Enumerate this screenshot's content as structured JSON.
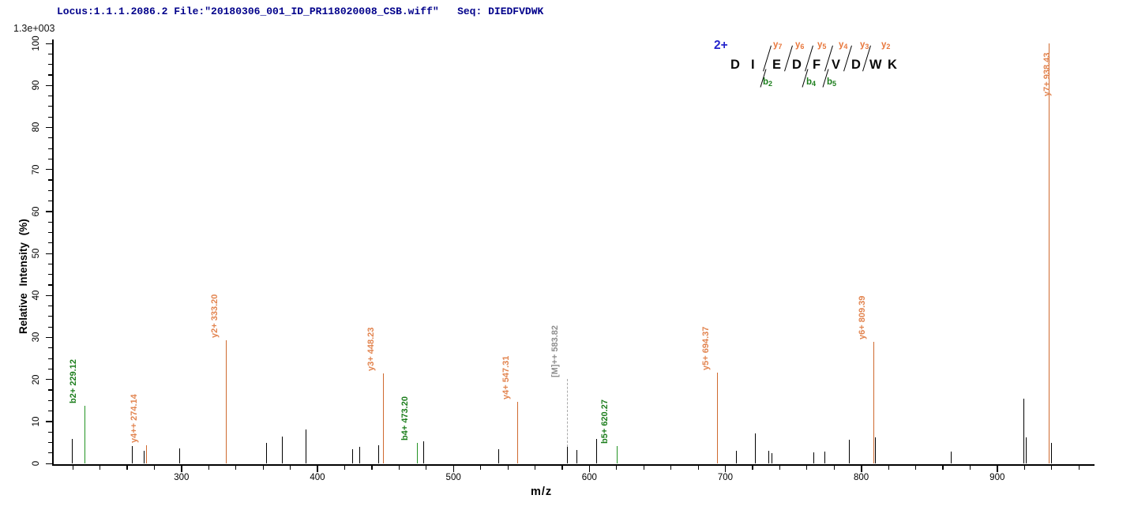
{
  "header": {
    "text": "Locus:1.1.1.2086.2 File:\"20180306_001_ID_PR118020008_CSB.wiff\"   Seq: DIEDFVDWK"
  },
  "scale_label": "1.3e+003",
  "axes": {
    "x": {
      "label": "m/z",
      "range": [
        206,
        971
      ],
      "major_ticks": [
        300,
        400,
        500,
        600,
        700,
        800,
        900
      ],
      "minor_tick_start": 220,
      "minor_tick_end": 960,
      "minor_tick_step": 20
    },
    "y": {
      "label": "Relative Intensity (%)",
      "range": [
        0,
        100
      ],
      "major_ticks": [
        0,
        10,
        20,
        30,
        40,
        50,
        60,
        70,
        80,
        90,
        100
      ],
      "minor_tick_step": 2.5
    }
  },
  "sequence_panel": {
    "charge": "2+",
    "peptide": "DIEDFVDWK",
    "residues": [
      "D",
      "I",
      "E",
      "D",
      "F",
      "V",
      "D",
      "W",
      "K"
    ],
    "y_ions": [
      {
        "base": "y",
        "sub": "7"
      },
      {
        "base": "y",
        "sub": "6"
      },
      {
        "base": "y",
        "sub": "5"
      },
      {
        "base": "y",
        "sub": "4"
      },
      {
        "base": "y",
        "sub": "3"
      },
      {
        "base": "y",
        "sub": "2"
      }
    ],
    "b_ions": [
      {
        "base": "b",
        "sub": "2"
      },
      {
        "base": "b",
        "sub": "4"
      },
      {
        "base": "b",
        "sub": "5"
      }
    ]
  },
  "colors": {
    "y_ion_line": "#CF6A2F",
    "y_ion_label": "#E2844F",
    "b_ion_line": "#249324",
    "b_ion_label": "#1B7D1B",
    "precursor_label": "#8E8E8E",
    "precursor_dash": "#ABABAB",
    "unassigned": "#000000",
    "header": "#00008B",
    "charge": "#2525CC"
  },
  "chart_data": {
    "type": "bar",
    "subtype": "ms2-peptide-fragmentation-spectrum",
    "xlabel": "m/z",
    "ylabel": "Relative Intensity (%)",
    "intensity_scale": "1.3e+003",
    "xlim": [
      206,
      971
    ],
    "ylim": [
      0,
      100
    ],
    "grid": false,
    "peaks": [
      {
        "mz": 219.4,
        "intensity": 5.9,
        "series": "unassigned",
        "label": ""
      },
      {
        "mz": 229.12,
        "intensity": 13.8,
        "series": "b",
        "label": "b2+ 229.12"
      },
      {
        "mz": 263.6,
        "intensity": 4.2,
        "series": "unassigned",
        "label": ""
      },
      {
        "mz": 272.4,
        "intensity": 3.1,
        "series": "unassigned",
        "label": ""
      },
      {
        "mz": 274.14,
        "intensity": 4.3,
        "series": "y",
        "label": "y4++ 274.14"
      },
      {
        "mz": 298.8,
        "intensity": 3.5,
        "series": "unassigned",
        "label": ""
      },
      {
        "mz": 333.2,
        "intensity": 29.3,
        "series": "y",
        "label": "y2+ 333.20"
      },
      {
        "mz": 362.4,
        "intensity": 4.9,
        "series": "unassigned",
        "label": ""
      },
      {
        "mz": 374.2,
        "intensity": 6.4,
        "series": "unassigned",
        "label": ""
      },
      {
        "mz": 391.6,
        "intensity": 8.1,
        "series": "unassigned",
        "label": ""
      },
      {
        "mz": 426.1,
        "intensity": 3.4,
        "series": "unassigned",
        "label": ""
      },
      {
        "mz": 430.8,
        "intensity": 3.9,
        "series": "unassigned",
        "label": ""
      },
      {
        "mz": 445.3,
        "intensity": 4.4,
        "series": "unassigned",
        "label": ""
      },
      {
        "mz": 448.23,
        "intensity": 21.4,
        "series": "y",
        "label": "y3+ 448.23"
      },
      {
        "mz": 473.2,
        "intensity": 4.8,
        "series": "b",
        "label": "b4+ 473.20"
      },
      {
        "mz": 478.2,
        "intensity": 5.2,
        "series": "unassigned",
        "label": ""
      },
      {
        "mz": 533.4,
        "intensity": 3.3,
        "series": "unassigned",
        "label": ""
      },
      {
        "mz": 547.31,
        "intensity": 14.7,
        "series": "y",
        "label": "y4+ 547.31"
      },
      {
        "mz": 583.82,
        "intensity": 3.9,
        "series": "precursor",
        "label": "[M]++ 583.82"
      },
      {
        "mz": 591.1,
        "intensity": 3.2,
        "series": "unassigned",
        "label": ""
      },
      {
        "mz": 605.6,
        "intensity": 5.9,
        "series": "unassigned",
        "label": ""
      },
      {
        "mz": 620.27,
        "intensity": 4.2,
        "series": "b",
        "label": "b5+ 620.27"
      },
      {
        "mz": 694.37,
        "intensity": 21.6,
        "series": "y",
        "label": "y5+ 694.37"
      },
      {
        "mz": 708.1,
        "intensity": 3.1,
        "series": "unassigned",
        "label": ""
      },
      {
        "mz": 722.2,
        "intensity": 7.1,
        "series": "unassigned",
        "label": ""
      },
      {
        "mz": 731.9,
        "intensity": 3.1,
        "series": "unassigned",
        "label": ""
      },
      {
        "mz": 734.4,
        "intensity": 2.5,
        "series": "unassigned",
        "label": ""
      },
      {
        "mz": 764.8,
        "intensity": 2.6,
        "series": "unassigned",
        "label": ""
      },
      {
        "mz": 773.2,
        "intensity": 2.9,
        "series": "unassigned",
        "label": ""
      },
      {
        "mz": 791.5,
        "intensity": 5.7,
        "series": "unassigned",
        "label": ""
      },
      {
        "mz": 809.39,
        "intensity": 28.9,
        "series": "y",
        "label": "y6+ 809.39"
      },
      {
        "mz": 810.5,
        "intensity": 6.2,
        "series": "unassigned",
        "label": ""
      },
      {
        "mz": 866.4,
        "intensity": 2.9,
        "series": "unassigned",
        "label": ""
      },
      {
        "mz": 919.6,
        "intensity": 15.4,
        "series": "unassigned",
        "label": ""
      },
      {
        "mz": 921.1,
        "intensity": 6.2,
        "series": "unassigned",
        "label": ""
      },
      {
        "mz": 938.43,
        "intensity": 100,
        "series": "y",
        "label": "y7+ 938.43",
        "label_side": "right"
      },
      {
        "mz": 939.9,
        "intensity": 4.8,
        "series": "unassigned",
        "label": ""
      }
    ]
  }
}
